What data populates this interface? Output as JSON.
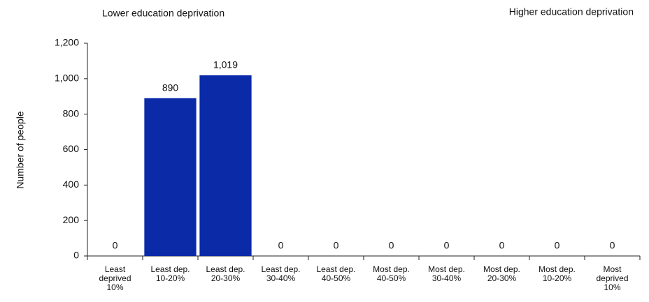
{
  "chart_data": {
    "type": "bar",
    "annotations": [
      "Lower education deprivation",
      "Higher education deprivation"
    ],
    "y_label": "Number of people",
    "categories": [
      "Least\ndeprived\n10%",
      "Least dep.\n10-20%",
      "Least dep.\n20-30%",
      "Least dep.\n30-40%",
      "Least dep.\n40-50%",
      "Most dep.\n40-50%",
      "Most dep.\n30-40%",
      "Most dep.\n20-30%",
      "Most dep.\n10-20%",
      "Most\ndeprived\n10%"
    ],
    "values": [
      0,
      890,
      1019,
      0,
      0,
      0,
      0,
      0,
      0,
      0
    ],
    "value_labels": [
      "0",
      "890",
      "1,019",
      "0",
      "0",
      "0",
      "0",
      "0",
      "0",
      "0"
    ],
    "color": "#0a2aa8",
    "ylim": [
      0,
      1200
    ],
    "yticks": [
      0,
      200,
      400,
      600,
      800,
      {
        "value": 1000,
        "label": "1,000"
      },
      {
        "value": 1200,
        "label": "1,200"
      }
    ],
    "grid": false
  }
}
